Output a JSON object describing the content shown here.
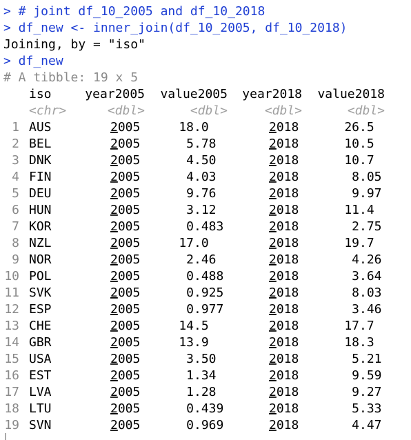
{
  "prompt": ">",
  "commands": [
    "# joint df_10_2005 and df_10_2018",
    "df_new <- inner_join(df_10_2005, df_10_2018)",
    "df_new"
  ],
  "messages": [
    "Joining, by = \"iso\""
  ],
  "tibble": {
    "description": "# A tibble: 19 x 5",
    "columns": [
      "iso",
      "year2005",
      "value2005",
      "year2018",
      "value2018"
    ],
    "types": [
      "<chr>",
      "<dbl>",
      "<dbl>",
      "<dbl>",
      "<dbl>"
    ],
    "row_numbers": [
      1,
      2,
      3,
      4,
      5,
      6,
      7,
      8,
      9,
      10,
      11,
      12,
      13,
      14,
      15,
      16,
      17,
      18,
      19
    ],
    "rows": [
      [
        "AUS",
        "2005",
        "18.0",
        "2018",
        "26.5"
      ],
      [
        "BEL",
        "2005",
        "5.78",
        "2018",
        "10.5"
      ],
      [
        "DNK",
        "2005",
        "4.50",
        "2018",
        "10.7"
      ],
      [
        "FIN",
        "2005",
        "4.03",
        "2018",
        "8.05"
      ],
      [
        "DEU",
        "2005",
        "9.76",
        "2018",
        "9.97"
      ],
      [
        "HUN",
        "2005",
        "3.12",
        "2018",
        "11.4"
      ],
      [
        "KOR",
        "2005",
        "0.483",
        "2018",
        "2.75"
      ],
      [
        "NZL",
        "2005",
        "17.0",
        "2018",
        "19.7"
      ],
      [
        "NOR",
        "2005",
        "2.46",
        "2018",
        "4.26"
      ],
      [
        "POL",
        "2005",
        "0.488",
        "2018",
        "3.64"
      ],
      [
        "SVK",
        "2005",
        "0.925",
        "2018",
        "8.03"
      ],
      [
        "ESP",
        "2005",
        "0.977",
        "2018",
        "3.46"
      ],
      [
        "CHE",
        "2005",
        "14.5",
        "2018",
        "17.7"
      ],
      [
        "GBR",
        "2005",
        "13.9",
        "2018",
        "18.3"
      ],
      [
        "USA",
        "2005",
        "3.50",
        "2018",
        "5.21"
      ],
      [
        "EST",
        "2005",
        "1.34",
        "2018",
        "9.59"
      ],
      [
        "LVA",
        "2005",
        "1.28",
        "2018",
        "9.27"
      ],
      [
        "LTU",
        "2005",
        "0.439",
        "2018",
        "5.33"
      ],
      [
        "SVN",
        "2005",
        "0.969",
        "2018",
        "4.47"
      ]
    ]
  }
}
